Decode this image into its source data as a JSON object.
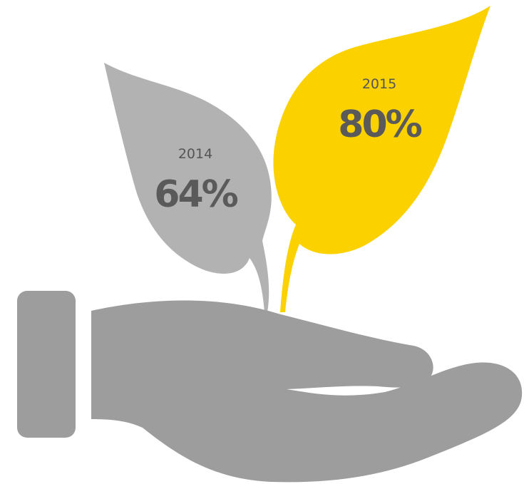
{
  "chart_data": {
    "type": "pictogram",
    "series": [
      {
        "year": "2014",
        "value": 64,
        "label": "64%",
        "color": "#b2b2b2"
      },
      {
        "year": "2015",
        "value": 80,
        "label": "80%",
        "color": "#fcd100"
      }
    ],
    "hand_color": "#9d9d9d",
    "text_color": "#5a5a5a"
  }
}
